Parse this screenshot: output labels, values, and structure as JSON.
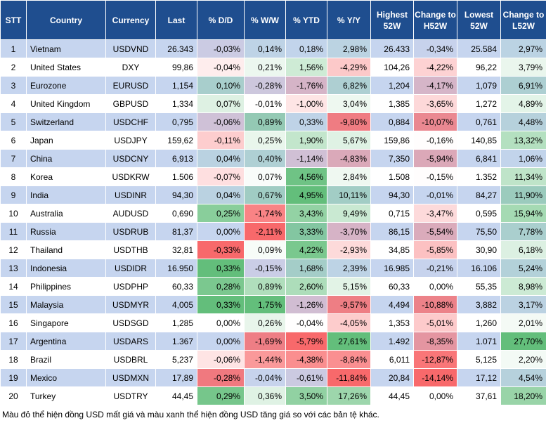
{
  "table": {
    "header": [
      "STT",
      "Country",
      "Currency",
      "Last",
      "% D/D",
      "% W/W",
      "% YTD",
      "% Y/Y",
      "Highest 52W",
      "Change to H52W",
      "Lowest 52W",
      "Change to L52W"
    ],
    "rows": [
      [
        "1",
        "Vietnam",
        "USDVND",
        "26.343",
        "-0,03%",
        "0,14%",
        "0,18%",
        "2,98%",
        "26.433",
        "-0,34%",
        "25.584",
        "2,97%"
      ],
      [
        "2",
        "United States",
        "DXY",
        "99,86",
        "-0,04%",
        "0,21%",
        "1,56%",
        "-4,29%",
        "104,26",
        "-4,22%",
        "96,22",
        "3,79%"
      ],
      [
        "3",
        "Eurozone",
        "EURUSD",
        "1,154",
        "0,10%",
        "-0,28%",
        "-1,76%",
        "6,82%",
        "1,204",
        "-4,17%",
        "1,079",
        "6,91%"
      ],
      [
        "4",
        "United Kingdom",
        "GBPUSD",
        "1,334",
        "0,07%",
        "-0,01%",
        "-1,00%",
        "3,04%",
        "1,385",
        "-3,65%",
        "1,272",
        "4,89%"
      ],
      [
        "5",
        "Switzerland",
        "USDCHF",
        "0,795",
        "-0,06%",
        "0,89%",
        "0,33%",
        "-9,80%",
        "0,884",
        "-10,07%",
        "0,761",
        "4,48%"
      ],
      [
        "6",
        "Japan",
        "USDJPY",
        "159,62",
        "-0,11%",
        "0,25%",
        "1,90%",
        "5,67%",
        "159,86",
        "-0,16%",
        "140,85",
        "13,32%"
      ],
      [
        "7",
        "China",
        "USDCNY",
        "6,913",
        "0,04%",
        "0,40%",
        "-1,14%",
        "-4,83%",
        "7,350",
        "-5,94%",
        "6,841",
        "1,06%"
      ],
      [
        "8",
        "Korea",
        "USDKRW",
        "1.506",
        "-0,07%",
        "0,07%",
        "4,56%",
        "2,84%",
        "1.508",
        "-0,15%",
        "1.352",
        "11,34%"
      ],
      [
        "9",
        "India",
        "USDINR",
        "94,30",
        "0,04%",
        "0,67%",
        "4,95%",
        "10,11%",
        "94,30",
        "-0,01%",
        "84,27",
        "11,90%"
      ],
      [
        "10",
        "Australia",
        "AUDUSD",
        "0,690",
        "0,25%",
        "-1,74%",
        "3,43%",
        "9,49%",
        "0,715",
        "-3,47%",
        "0,595",
        "15,94%"
      ],
      [
        "11",
        "Russia",
        "USDRUB",
        "81,37",
        "0,00%",
        "-2,11%",
        "3,33%",
        "-3,70%",
        "86,15",
        "-5,54%",
        "75,50",
        "7,78%"
      ],
      [
        "12",
        "Thailand",
        "USDTHB",
        "32,81",
        "-0,33%",
        "0,09%",
        "4,22%",
        "-2,93%",
        "34,85",
        "-5,85%",
        "30,90",
        "6,18%"
      ],
      [
        "13",
        "Indonesia",
        "USDIDR",
        "16.950",
        "0,33%",
        "-0,15%",
        "1,68%",
        "2,39%",
        "16.985",
        "-0,21%",
        "16.106",
        "5,24%"
      ],
      [
        "14",
        "Philippines",
        "USDPHP",
        "60,33",
        "0,28%",
        "0,89%",
        "2,60%",
        "5,15%",
        "60,33",
        "0,00%",
        "55,35",
        "8,98%"
      ],
      [
        "15",
        "Malaysia",
        "USDMYR",
        "4,005",
        "0,33%",
        "1,75%",
        "-1,26%",
        "-9,57%",
        "4,494",
        "-10,88%",
        "3,882",
        "3,17%"
      ],
      [
        "16",
        "Singapore",
        "USDSGD",
        "1,285",
        "0,00%",
        "0,26%",
        "-0,04%",
        "-4,05%",
        "1,353",
        "-5,01%",
        "1,260",
        "2,01%"
      ],
      [
        "17",
        "Argentina",
        "USDARS",
        "1.367",
        "0,00%",
        "-1,69%",
        "-5,79%",
        "27,61%",
        "1.492",
        "-8,35%",
        "1.071",
        "27,70%"
      ],
      [
        "18",
        "Brazil",
        "USDBRL",
        "5,237",
        "-0,06%",
        "-1,44%",
        "-4,38%",
        "-8,84%",
        "6,011",
        "-12,87%",
        "5,125",
        "2,20%"
      ],
      [
        "19",
        "Mexico",
        "USDMXN",
        "17,89",
        "-0,28%",
        "-0,04%",
        "-0,61%",
        "-11,84%",
        "20,84",
        "-14,14%",
        "17,12",
        "4,54%"
      ],
      [
        "20",
        "Turkey",
        "USDTRY",
        "44,45",
        "0,29%",
        "0,36%",
        "3,50%",
        "17,26%",
        "44,45",
        "0,00%",
        "37,61",
        "18,20%"
      ]
    ]
  },
  "footnote": "Màu đỏ thể hiện đồng USD mất giá và màu xanh thể hiện đồng USD tăng giá so với các bản tệ khác."
}
